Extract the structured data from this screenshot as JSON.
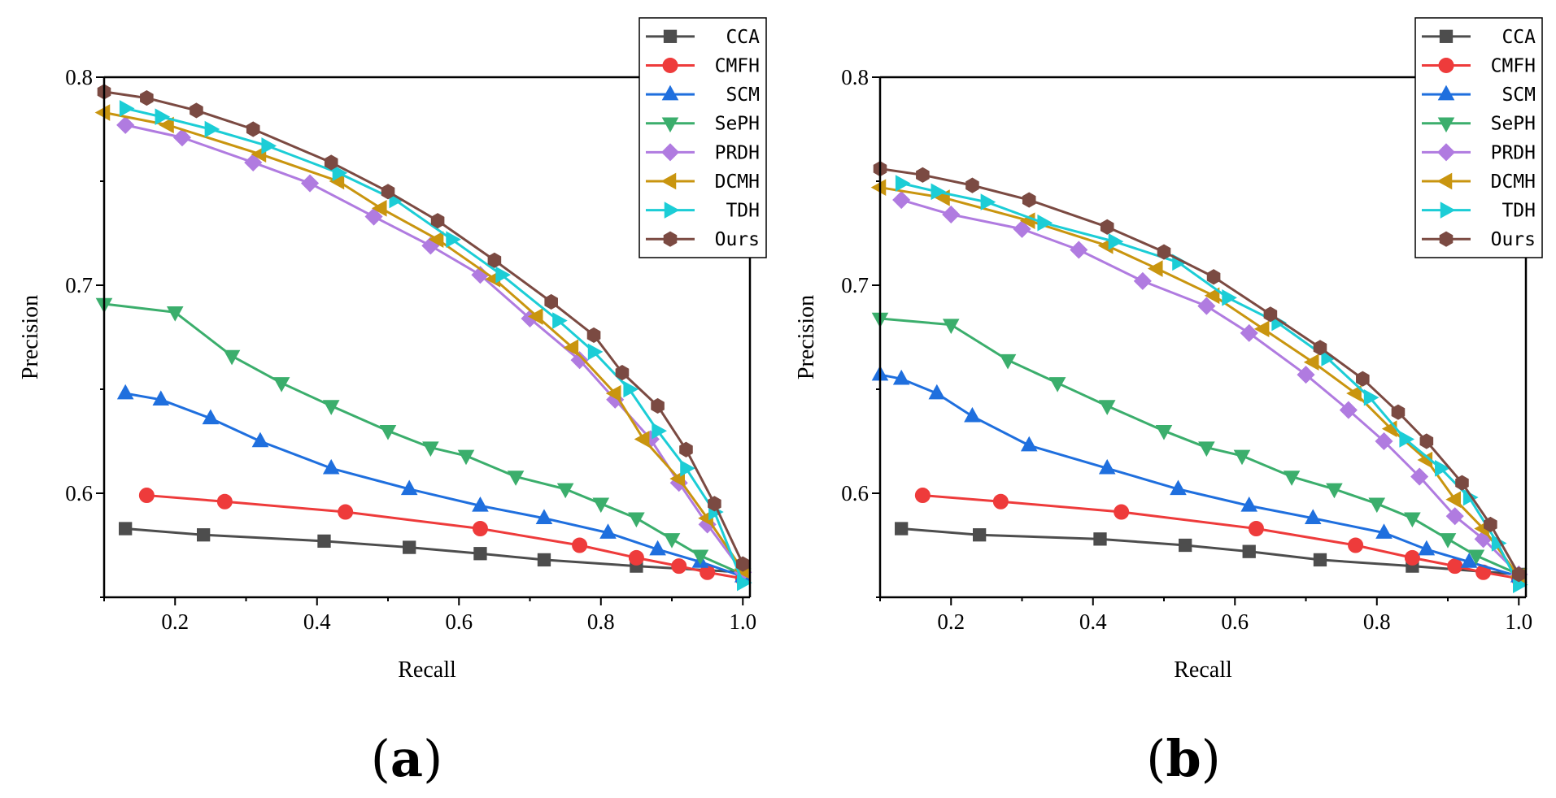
{
  "chart_data": [
    {
      "type": "line",
      "panel_label": "a",
      "title": "",
      "xlabel": "Recall",
      "ylabel": "Precision",
      "xlim": [
        0.1,
        1.01
      ],
      "ylim": [
        0.55,
        0.8
      ],
      "xticks": [
        0.2,
        0.4,
        0.6,
        0.8,
        1.0
      ],
      "xtick_labels": [
        "0.2",
        "0.4",
        "0.6",
        "0.8",
        "1.0"
      ],
      "yticks": [
        0.6,
        0.7,
        0.8
      ],
      "ytick_labels": [
        "0.6",
        "0.7",
        "0.8"
      ],
      "legend_position": "top-right",
      "series": [
        {
          "name": "CCA",
          "color": "#4d4d4d",
          "marker": "square",
          "x": [
            0.13,
            0.24,
            0.41,
            0.53,
            0.63,
            0.72,
            0.85,
            1.0
          ],
          "y": [
            0.583,
            0.58,
            0.577,
            0.574,
            0.571,
            0.568,
            0.565,
            0.562
          ]
        },
        {
          "name": "CMFH",
          "color": "#ee3b3b",
          "marker": "circle",
          "x": [
            0.16,
            0.27,
            0.44,
            0.63,
            0.77,
            0.85,
            0.91,
            0.95,
            1.0
          ],
          "y": [
            0.599,
            0.596,
            0.591,
            0.583,
            0.575,
            0.569,
            0.565,
            0.562,
            0.559
          ]
        },
        {
          "name": "SCM",
          "color": "#1f6fde",
          "marker": "triangle-up",
          "x": [
            0.13,
            0.18,
            0.25,
            0.32,
            0.42,
            0.53,
            0.63,
            0.72,
            0.81,
            0.88,
            0.94,
            1.0
          ],
          "y": [
            0.648,
            0.645,
            0.636,
            0.625,
            0.612,
            0.602,
            0.594,
            0.588,
            0.581,
            0.573,
            0.567,
            0.56
          ]
        },
        {
          "name": "SePH",
          "color": "#3bae6c",
          "marker": "triangle-down",
          "x": [
            0.1,
            0.2,
            0.28,
            0.35,
            0.42,
            0.5,
            0.56,
            0.61,
            0.68,
            0.75,
            0.8,
            0.85,
            0.9,
            0.94,
            1.0
          ],
          "y": [
            0.691,
            0.687,
            0.666,
            0.653,
            0.642,
            0.63,
            0.622,
            0.618,
            0.608,
            0.602,
            0.595,
            0.588,
            0.578,
            0.57,
            0.561
          ]
        },
        {
          "name": "PRDH",
          "color": "#b07be0",
          "marker": "diamond",
          "x": [
            0.13,
            0.21,
            0.31,
            0.39,
            0.48,
            0.56,
            0.63,
            0.7,
            0.77,
            0.82,
            0.87,
            0.91,
            0.95,
            1.0
          ],
          "y": [
            0.777,
            0.771,
            0.759,
            0.749,
            0.733,
            0.719,
            0.705,
            0.684,
            0.664,
            0.645,
            0.626,
            0.605,
            0.585,
            0.562
          ]
        },
        {
          "name": "DCMH",
          "color": "#c9950f",
          "marker": "triangle-left",
          "x": [
            0.1,
            0.19,
            0.32,
            0.43,
            0.49,
            0.57,
            0.65,
            0.71,
            0.76,
            0.82,
            0.86,
            0.91,
            0.95,
            1.0
          ],
          "y": [
            0.783,
            0.777,
            0.763,
            0.75,
            0.737,
            0.722,
            0.703,
            0.685,
            0.67,
            0.648,
            0.626,
            0.607,
            0.588,
            0.563
          ]
        },
        {
          "name": "TDH",
          "color": "#1ccdd6",
          "marker": "triangle-right",
          "x": [
            0.13,
            0.18,
            0.25,
            0.33,
            0.43,
            0.51,
            0.59,
            0.66,
            0.74,
            0.79,
            0.84,
            0.88,
            0.92,
            0.96,
            1.0
          ],
          "y": [
            0.785,
            0.781,
            0.775,
            0.767,
            0.754,
            0.741,
            0.722,
            0.705,
            0.683,
            0.668,
            0.65,
            0.63,
            0.612,
            0.591,
            0.557
          ]
        },
        {
          "name": "Ours",
          "color": "#7b4a42",
          "marker": "hexagon",
          "x": [
            0.1,
            0.16,
            0.23,
            0.31,
            0.42,
            0.5,
            0.57,
            0.65,
            0.73,
            0.79,
            0.83,
            0.88,
            0.92,
            0.96,
            1.0
          ],
          "y": [
            0.793,
            0.79,
            0.784,
            0.775,
            0.759,
            0.745,
            0.731,
            0.712,
            0.692,
            0.676,
            0.658,
            0.642,
            0.621,
            0.595,
            0.566
          ]
        }
      ]
    },
    {
      "type": "line",
      "panel_label": "b",
      "title": "",
      "xlabel": "Recall",
      "ylabel": "Precision",
      "xlim": [
        0.1,
        1.01
      ],
      "ylim": [
        0.55,
        0.8
      ],
      "xticks": [
        0.2,
        0.4,
        0.6,
        0.8,
        1.0
      ],
      "xtick_labels": [
        "0.2",
        "0.4",
        "0.6",
        "0.8",
        "1.0"
      ],
      "yticks": [
        0.6,
        0.7,
        0.8
      ],
      "ytick_labels": [
        "0.6",
        "0.7",
        "0.8"
      ],
      "legend_position": "top-right",
      "series": [
        {
          "name": "CCA",
          "color": "#4d4d4d",
          "marker": "square",
          "x": [
            0.13,
            0.24,
            0.41,
            0.53,
            0.62,
            0.72,
            0.85,
            1.0
          ],
          "y": [
            0.583,
            0.58,
            0.578,
            0.575,
            0.572,
            0.568,
            0.565,
            0.561
          ]
        },
        {
          "name": "CMFH",
          "color": "#ee3b3b",
          "marker": "circle",
          "x": [
            0.16,
            0.27,
            0.44,
            0.63,
            0.77,
            0.85,
            0.91,
            0.95,
            1.0
          ],
          "y": [
            0.599,
            0.596,
            0.591,
            0.583,
            0.575,
            0.569,
            0.565,
            0.562,
            0.559
          ]
        },
        {
          "name": "SCM",
          "color": "#1f6fde",
          "marker": "triangle-up",
          "x": [
            0.1,
            0.13,
            0.18,
            0.23,
            0.31,
            0.42,
            0.52,
            0.62,
            0.71,
            0.81,
            0.87,
            0.93,
            1.0
          ],
          "y": [
            0.657,
            0.655,
            0.648,
            0.637,
            0.623,
            0.612,
            0.602,
            0.594,
            0.588,
            0.581,
            0.573,
            0.567,
            0.56
          ]
        },
        {
          "name": "SePH",
          "color": "#3bae6c",
          "marker": "triangle-down",
          "x": [
            0.1,
            0.2,
            0.28,
            0.35,
            0.42,
            0.5,
            0.56,
            0.61,
            0.68,
            0.74,
            0.8,
            0.85,
            0.9,
            0.94,
            1.0
          ],
          "y": [
            0.684,
            0.681,
            0.664,
            0.653,
            0.642,
            0.63,
            0.622,
            0.618,
            0.608,
            0.602,
            0.595,
            0.588,
            0.578,
            0.57,
            0.561
          ]
        },
        {
          "name": "PRDH",
          "color": "#b07be0",
          "marker": "diamond",
          "x": [
            0.13,
            0.2,
            0.3,
            0.38,
            0.47,
            0.56,
            0.62,
            0.7,
            0.76,
            0.81,
            0.86,
            0.91,
            0.95,
            1.0
          ],
          "y": [
            0.741,
            0.734,
            0.727,
            0.717,
            0.702,
            0.69,
            0.677,
            0.657,
            0.64,
            0.625,
            0.608,
            0.589,
            0.578,
            0.561
          ]
        },
        {
          "name": "DCMH",
          "color": "#c9950f",
          "marker": "triangle-left",
          "x": [
            0.1,
            0.19,
            0.31,
            0.42,
            0.49,
            0.57,
            0.64,
            0.71,
            0.77,
            0.82,
            0.87,
            0.91,
            0.95,
            1.0
          ],
          "y": [
            0.747,
            0.742,
            0.731,
            0.719,
            0.708,
            0.695,
            0.679,
            0.663,
            0.648,
            0.631,
            0.616,
            0.597,
            0.583,
            0.56
          ]
        },
        {
          "name": "TDH",
          "color": "#1ccdd6",
          "marker": "triangle-right",
          "x": [
            0.13,
            0.18,
            0.25,
            0.33,
            0.43,
            0.52,
            0.59,
            0.66,
            0.73,
            0.79,
            0.84,
            0.89,
            0.93,
            0.97,
            1.0
          ],
          "y": [
            0.749,
            0.745,
            0.74,
            0.73,
            0.721,
            0.711,
            0.694,
            0.682,
            0.665,
            0.646,
            0.626,
            0.612,
            0.598,
            0.576,
            0.556
          ]
        },
        {
          "name": "Ours",
          "color": "#7b4a42",
          "marker": "hexagon",
          "x": [
            0.1,
            0.16,
            0.23,
            0.31,
            0.42,
            0.5,
            0.57,
            0.65,
            0.72,
            0.78,
            0.83,
            0.87,
            0.92,
            0.96,
            1.0
          ],
          "y": [
            0.756,
            0.753,
            0.748,
            0.741,
            0.728,
            0.716,
            0.704,
            0.686,
            0.67,
            0.655,
            0.639,
            0.625,
            0.605,
            0.585,
            0.561
          ]
        }
      ]
    }
  ]
}
